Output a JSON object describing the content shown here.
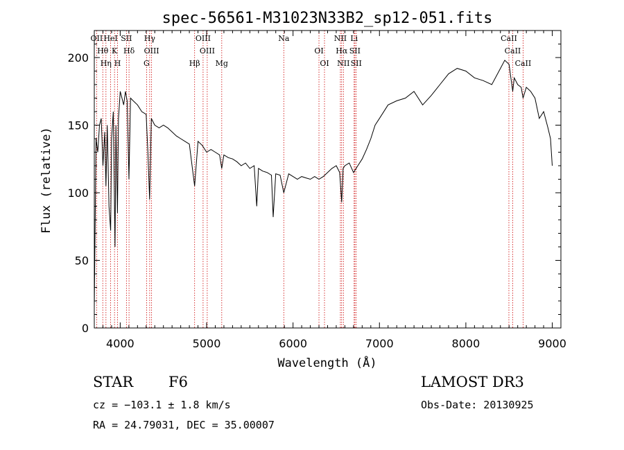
{
  "chart_data": {
    "type": "line",
    "title": "spec-56561-M31023N33B2_sp12-051.fits",
    "xlabel": "Wavelength (Å)",
    "ylabel": "Flux (relative)",
    "xlim": [
      3700,
      9100
    ],
    "ylim": [
      0,
      220
    ],
    "xticks": [
      4000,
      5000,
      6000,
      7000,
      8000,
      9000
    ],
    "yticks": [
      0,
      50,
      100,
      150,
      200
    ],
    "spectrum": {
      "x": [
        3700,
        3720,
        3740,
        3760,
        3780,
        3800,
        3820,
        3835,
        3850,
        3870,
        3889,
        3900,
        3920,
        3940,
        3950,
        3968,
        3980,
        4000,
        4020,
        4040,
        4060,
        4080,
        4101,
        4120,
        4150,
        4200,
        4250,
        4300,
        4320,
        4340,
        4360,
        4400,
        4450,
        4500,
        4550,
        4600,
        4650,
        4700,
        4750,
        4800,
        4861,
        4900,
        4950,
        5000,
        5050,
        5100,
        5150,
        5175,
        5200,
        5250,
        5300,
        5350,
        5400,
        5450,
        5500,
        5550,
        5580,
        5600,
        5650,
        5700,
        5750,
        5770,
        5800,
        5850,
        5893,
        5950,
        6000,
        6050,
        6100,
        6150,
        6200,
        6250,
        6300,
        6350,
        6400,
        6450,
        6500,
        6540,
        6563,
        6580,
        6600,
        6650,
        6700,
        6750,
        6800,
        6850,
        6900,
        6950,
        7000,
        7100,
        7200,
        7300,
        7400,
        7500,
        7600,
        7700,
        7800,
        7900,
        8000,
        8100,
        8200,
        8300,
        8400,
        8450,
        8500,
        8542,
        8560,
        8600,
        8640,
        8662,
        8700,
        8750,
        8800,
        8850,
        8900,
        8950,
        8980,
        9000
      ],
      "y": [
        15,
        140,
        130,
        150,
        155,
        120,
        145,
        105,
        150,
        90,
        72,
        140,
        160,
        60,
        150,
        85,
        155,
        175,
        170,
        165,
        175,
        168,
        110,
        170,
        168,
        165,
        160,
        158,
        130,
        95,
        155,
        150,
        148,
        150,
        148,
        145,
        142,
        140,
        138,
        136,
        105,
        138,
        135,
        130,
        132,
        130,
        128,
        118,
        128,
        126,
        125,
        123,
        120,
        122,
        118,
        120,
        90,
        118,
        116,
        115,
        113,
        82,
        114,
        113,
        100,
        114,
        112,
        110,
        112,
        111,
        110,
        112,
        110,
        112,
        115,
        118,
        120,
        115,
        93,
        118,
        120,
        122,
        115,
        120,
        125,
        132,
        140,
        150,
        155,
        165,
        168,
        170,
        175,
        165,
        172,
        180,
        188,
        192,
        190,
        185,
        183,
        180,
        192,
        198,
        195,
        175,
        185,
        180,
        178,
        170,
        178,
        175,
        170,
        155,
        160,
        148,
        140,
        120
      ]
    },
    "line_markers": [
      {
        "label": "OII",
        "wavelength": 3727
      },
      {
        "label": "Hθ",
        "wavelength": 3798
      },
      {
        "label": "Hη",
        "wavelength": 3835
      },
      {
        "label": "HeI",
        "wavelength": 3889
      },
      {
        "label": "K",
        "wavelength": 3934
      },
      {
        "label": "H",
        "wavelength": 3969
      },
      {
        "label": "SII",
        "wavelength": 4072
      },
      {
        "label": "Hδ",
        "wavelength": 4102
      },
      {
        "label": "G",
        "wavelength": 4305
      },
      {
        "label": "Hγ",
        "wavelength": 4341
      },
      {
        "label": "OIII",
        "wavelength": 4363
      },
      {
        "label": "Hβ",
        "wavelength": 4861
      },
      {
        "label": "OIII",
        "wavelength": 4959
      },
      {
        "label": "OIII",
        "wavelength": 5007
      },
      {
        "label": "Mg",
        "wavelength": 5175
      },
      {
        "label": "Na",
        "wavelength": 5893
      },
      {
        "label": "OI",
        "wavelength": 6300
      },
      {
        "label": "OI",
        "wavelength": 6364
      },
      {
        "label": "NII",
        "wavelength": 6548
      },
      {
        "label": "Hα",
        "wavelength": 6563
      },
      {
        "label": "NII",
        "wavelength": 6583
      },
      {
        "label": "Li",
        "wavelength": 6707
      },
      {
        "label": "SII",
        "wavelength": 6716
      },
      {
        "label": "SII",
        "wavelength": 6731
      },
      {
        "label": "CaII",
        "wavelength": 8498
      },
      {
        "label": "CaII",
        "wavelength": 8542
      },
      {
        "label": "CaII",
        "wavelength": 8662
      }
    ]
  },
  "info": {
    "class": "STAR",
    "subclass": "F6",
    "survey": "LAMOST DR3",
    "cz": "cz = −103.1 ± 1.8 km/s",
    "obs_date": "Obs-Date: 20130925",
    "coords": "RA =  24.79031, DEC =  35.00007"
  },
  "colors": {
    "spectrum": "#000000",
    "marker": "#cc0000",
    "axis": "#000000"
  }
}
